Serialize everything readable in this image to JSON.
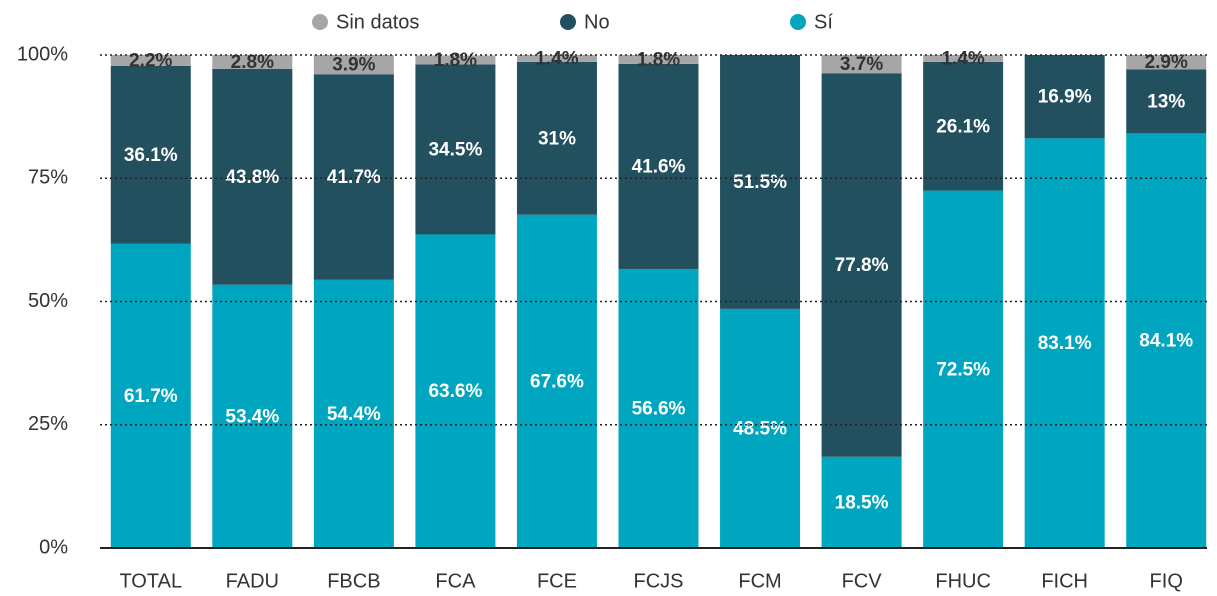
{
  "chart_data": {
    "type": "stacked_bar",
    "categories": [
      "TOTAL",
      "FADU",
      "FBCB",
      "FCA",
      "FCE",
      "FCJS",
      "FCM",
      "FCV",
      "FHUC",
      "FICH",
      "FIQ"
    ],
    "series": [
      {
        "name": "Sí",
        "color": "#00a6bf",
        "values": [
          61.7,
          53.4,
          54.4,
          63.6,
          67.6,
          56.6,
          48.5,
          18.5,
          72.5,
          83.1,
          84.1
        ],
        "value_labels": [
          "61.7%",
          "53.4%",
          "54.4%",
          "63.6%",
          "67.6%",
          "56.6%",
          "48.5%",
          "18.5%",
          "72.5%",
          "83.1%",
          "84.1%"
        ]
      },
      {
        "name": "No",
        "color": "#23505f",
        "values": [
          36.1,
          43.8,
          41.7,
          34.5,
          31,
          41.6,
          51.5,
          77.8,
          26.1,
          16.9,
          13
        ],
        "value_labels": [
          "36.1%",
          "43.8%",
          "41.7%",
          "34.5%",
          "31%",
          "41.6%",
          "51.5%",
          "77.8%",
          "26.1%",
          "16.9%",
          "13%"
        ]
      },
      {
        "name": "Sin datos",
        "color": "#a6a6a9",
        "values": [
          2.2,
          2.8,
          3.9,
          1.8,
          1.4,
          1.8,
          null,
          3.7,
          1.4,
          null,
          2.9
        ],
        "value_labels": [
          "2.2%",
          "2.8%",
          "3.9%",
          "1.8%",
          "1.4%",
          "1.8%",
          null,
          "3.7%",
          "1.4%",
          null,
          "2.9%"
        ]
      }
    ],
    "ylim": [
      0,
      100
    ],
    "yticks": [
      {
        "value": 0,
        "label": "0%"
      },
      {
        "value": 25,
        "label": "25%"
      },
      {
        "value": 50,
        "label": "50%"
      },
      {
        "value": 75,
        "label": "75%"
      },
      {
        "value": 100,
        "label": "100%"
      }
    ],
    "grid": true,
    "legend": "top"
  }
}
